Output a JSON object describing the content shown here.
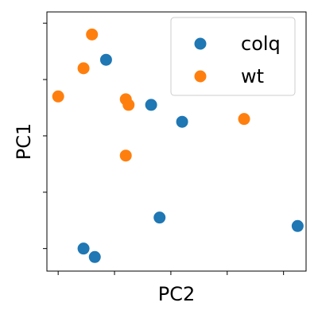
{
  "chart_data": {
    "type": "scatter",
    "xlabel": "PC2",
    "ylabel": "PC1",
    "xlim": [
      -0.2,
      4.4
    ],
    "ylim": [
      -4.4,
      0.2
    ],
    "grid": false,
    "legend_placement": "top-right",
    "x_ticks": [
      0,
      1,
      2,
      3,
      4
    ],
    "y_ticks": [
      -4,
      -3,
      -2,
      -1,
      0
    ],
    "series": [
      {
        "name": "colq",
        "color": "#1f77b4",
        "points": [
          {
            "x": 0.85,
            "y": -0.65
          },
          {
            "x": 1.65,
            "y": -1.45
          },
          {
            "x": 2.2,
            "y": -1.75
          },
          {
            "x": 1.8,
            "y": -3.45
          },
          {
            "x": 4.25,
            "y": -3.6
          },
          {
            "x": 0.45,
            "y": -4.0
          },
          {
            "x": 0.65,
            "y": -4.15
          }
        ]
      },
      {
        "name": "wt",
        "color": "#ff7f0e",
        "points": [
          {
            "x": 0.6,
            "y": -0.2
          },
          {
            "x": 0.45,
            "y": -0.8
          },
          {
            "x": 0.0,
            "y": -1.3
          },
          {
            "x": 1.2,
            "y": -1.35
          },
          {
            "x": 1.25,
            "y": -1.45
          },
          {
            "x": 3.3,
            "y": -1.7
          },
          {
            "x": 1.2,
            "y": -2.35
          }
        ]
      }
    ]
  }
}
